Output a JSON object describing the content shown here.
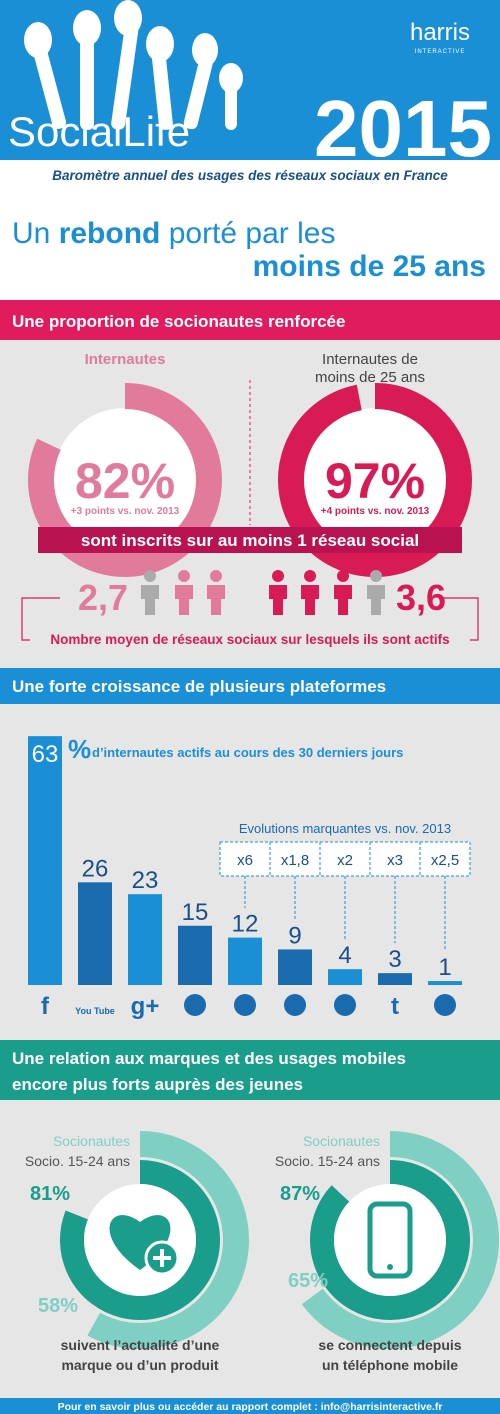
{
  "header": {
    "logo": "harris",
    "logo_sub": "INTERACTIVE",
    "brand": "SocialLife",
    "year": "2015",
    "subtitle": "Baromètre annuel des usages des réseaux sociaux en France"
  },
  "headline": {
    "line1_start": "Un ",
    "line1_bold": "rebond",
    "line1_end": " porté par les",
    "line2": "moins de 25 ans"
  },
  "section1": {
    "title": "Une proportion de socionautes renforcée",
    "left": {
      "label": "Internautes",
      "value": 82,
      "label_value": "82%",
      "note": "+3 points vs. nov. 2013",
      "average": "2,7"
    },
    "right": {
      "label_lines": [
        "Internautes de",
        "moins de 25 ans"
      ],
      "value": 97,
      "label_value": "97%",
      "note": "+4 points vs. nov. 2013",
      "average": "3,6"
    },
    "band": "sont inscrits sur au moins 1 réseau social",
    "average_caption": "Nombre moyen de réseaux sociaux sur lesquels ils sont actifs"
  },
  "section2": {
    "title": "Une forte croissance de plusieurs plateformes",
    "chart": {
      "type": "bar",
      "unit": "%",
      "subtitle": "d’internautes actifs au cours des 30 derniers jours",
      "categories": [
        "f",
        "You Tube",
        "g+",
        null,
        null,
        null,
        null,
        "t",
        null
      ],
      "values": [
        63,
        26,
        23,
        15,
        12,
        9,
        4,
        3,
        1
      ],
      "colors": [
        "#1a8fd6",
        "#1a6aae"
      ]
    },
    "evolutions": {
      "title": "Evolutions marquantes vs. nov. 2013",
      "labels": [
        "x6",
        "x1,8",
        "x2",
        "x3",
        "x2,5"
      ]
    }
  },
  "section3": {
    "title_lines": [
      "Une relation aux marques et des usages mobiles",
      "encore plus forts auprès des jeunes"
    ],
    "legend": [
      "Socionautes",
      "Socio. 15-24 ans"
    ],
    "left": {
      "young": 81,
      "young_label": "81%",
      "all": 58,
      "all_label": "58%",
      "caption_lines": [
        "suivent l’actualité d’une",
        "marque ou d’un produit"
      ]
    },
    "right": {
      "young": 87,
      "young_label": "87%",
      "all": 65,
      "all_label": "65%",
      "caption_lines": [
        "se connectent depuis",
        "un téléphone mobile"
      ]
    }
  },
  "footer": "Pour en savoir plus ou accéder au rapport complet : info@harrisinteractive.fr"
}
